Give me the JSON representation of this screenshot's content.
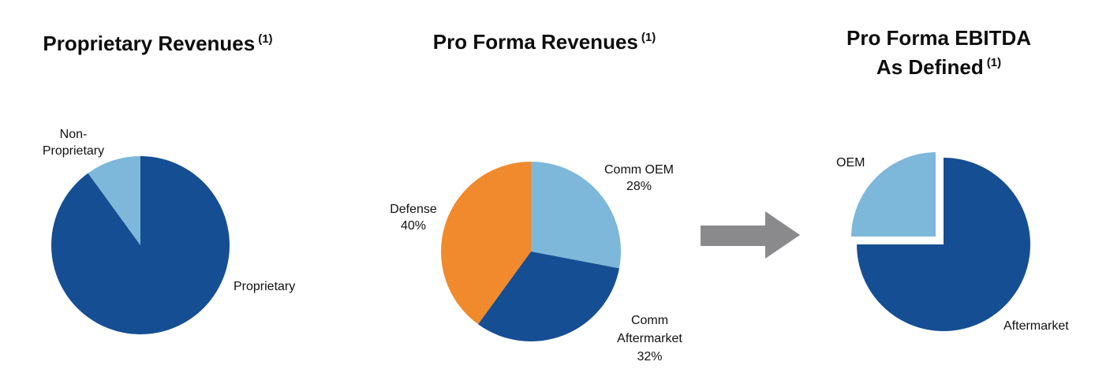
{
  "chart_data": [
    {
      "type": "pie",
      "title": "Proprietary Revenues",
      "title_note": "(1)",
      "slices": [
        {
          "label": "Proprietary",
          "value": 90,
          "color": "#154e93"
        },
        {
          "label_lines": [
            "Non-",
            "Proprietary"
          ],
          "label": "Non-Proprietary",
          "value": 10,
          "color": "#7db7da"
        }
      ]
    },
    {
      "type": "pie",
      "title": "Pro Forma Revenues",
      "title_note": "(1)",
      "slices": [
        {
          "label_lines": [
            "Comm OEM",
            "28%"
          ],
          "label": "Comm OEM",
          "value": 28,
          "pct_text": "28%",
          "color": "#7db7da"
        },
        {
          "label_lines": [
            "Comm",
            "Aftermarket",
            "32%"
          ],
          "label": "Comm Aftermarket",
          "value": 32,
          "pct_text": "32%",
          "color": "#154e93"
        },
        {
          "label_lines": [
            "Defense",
            "40%"
          ],
          "label": "Defense",
          "value": 40,
          "pct_text": "40%",
          "color": "#f08a2c"
        }
      ]
    },
    {
      "type": "pie",
      "title_lines": [
        "Pro Forma EBITDA",
        "As Defined"
      ],
      "title": "Pro Forma EBITDA As Defined",
      "title_note": "(1)",
      "slices": [
        {
          "label": "Aftermarket",
          "value": 75,
          "color": "#154e93"
        },
        {
          "label": "OEM",
          "value": 25,
          "color": "#7db7da",
          "exploded": true
        }
      ]
    }
  ],
  "arrow": {
    "icon": "right-arrow-icon",
    "color": "#8a8a8c"
  }
}
